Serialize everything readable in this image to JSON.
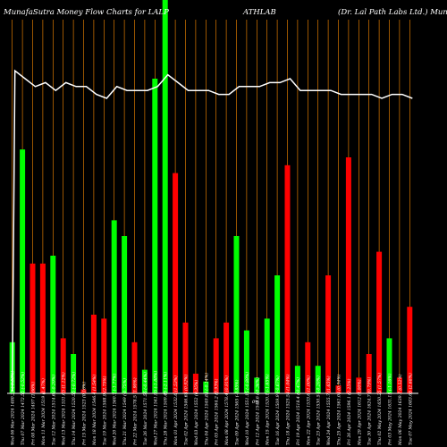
{
  "header": {
    "left": "MunafaSutra  Money Flow  Charts for LALP",
    "center": "ATHLAB",
    "right": "(Dr. Lal Path Labs Ltd.) Munaf"
  },
  "colors": {
    "background": "#000000",
    "up": "#00ff00",
    "down": "#ff0000",
    "grid": "#ff8c00",
    "line": "#ffffff",
    "text": "#ffffff"
  },
  "chart_data": {
    "type": "bar",
    "value_scale": [
      0,
      100
    ],
    "bars": [
      {
        "v": 13,
        "dir": "up",
        "label": "Wed 06 Mar 2024 1480.25 (-0.58%)"
      },
      {
        "v": 62,
        "dir": "up",
        "label": "Thu 07 Mar 2024 1472.55 (-0.52%)"
      },
      {
        "v": 33,
        "dir": "down",
        "label": "Fri 08 Mar 2024 1497 (1.66%)"
      },
      {
        "v": 33,
        "dir": "down",
        "label": "Mon 11 Mar 2024 1519 (1.47%)"
      },
      {
        "v": 35,
        "dir": "up",
        "label": "Tue 12 Mar 2024 1514.6 (-0.29%)"
      },
      {
        "v": 14,
        "dir": "down",
        "label": "Wed 13 Mar 2024 1531.65 (1.12%)"
      },
      {
        "v": 10,
        "dir": "up",
        "label": "Thu 14 Mar 2024 1520.55 (-0.72%)"
      },
      {
        "v": 1,
        "dir": "down",
        "label": "Fri 15 Mar 2024 1523 (0.16%)"
      },
      {
        "v": 20,
        "dir": "down",
        "label": "Mon 18 Mar 2024 1546.4 (1.54%)"
      },
      {
        "v": 19,
        "dir": "down",
        "label": "Tue 19 Mar 2024 1588.9 (2.75%)"
      },
      {
        "v": 44,
        "dir": "up",
        "label": "Wed 20 Mar 2024 1560.7 (-1.77%)"
      },
      {
        "v": 40,
        "dir": "up",
        "label": "Thu 21 Mar 2024 1549 (-0.75%)"
      },
      {
        "v": 13,
        "dir": "down",
        "label": "Fri 22 Mar 2024 1578.5 (1.90%)"
      },
      {
        "v": 6,
        "dir": "up",
        "label": "Tue 26 Mar 2024 1571.55 (-0.44%)"
      },
      {
        "v": 80,
        "dir": "up",
        "label": "Wed 27 Mar 2024 1541.95 (-1.88%)"
      },
      {
        "v": 100,
        "dir": "up",
        "label": "Thu 28 Mar 2024 1509.45 (-2.11%)"
      },
      {
        "v": 56,
        "dir": "down",
        "label": "Mon 01 Apr 2024 1532.6 (1.53%)"
      },
      {
        "v": 18,
        "dir": "down",
        "label": "Tue 02 Apr 2024 1546.65 (0.92%)"
      },
      {
        "v": 5,
        "dir": "down",
        "label": "Wed 03 Apr 2024 1552 (0.35%)"
      },
      {
        "v": 3,
        "dir": "up",
        "label": "Thu 04 Apr 2024 1549.85 (-0.14%)"
      },
      {
        "v": 14,
        "dir": "down",
        "label": "Fri 05 Apr 2024 1564.2 (0.93%)"
      },
      {
        "v": 18,
        "dir": "down",
        "label": "Mon 08 Apr 2024 1578.4 (0.91%)"
      },
      {
        "v": 40,
        "dir": "up",
        "label": "Tue 09 Apr 2024 1565 (-0.85%)"
      },
      {
        "v": 16,
        "dir": "up",
        "label": "Wed 10 Apr 2024 1551.15 (-0.89%)"
      },
      {
        "v": 4,
        "dir": "up",
        "label": "Fri 12 Apr 2024 1545.6 (-0.36%)"
      },
      {
        "v": 19,
        "dir": "up",
        "label": "Mon 15 Apr 2024 1520.1 (-1.65%)"
      },
      {
        "v": 30,
        "dir": "up",
        "label": "Tue 16 Apr 2024 1509.9 (-0.67%)"
      },
      {
        "v": 58,
        "dir": "down",
        "label": "Thu 18 Apr 2024 1525.55 (1.04%)"
      },
      {
        "v": 7,
        "dir": "up",
        "label": "Fri 19 Apr 2024 1518.4 (-0.47%)"
      },
      {
        "v": 13,
        "dir": "down",
        "label": "Mon 22 Apr 2024 1533.6 (1.00%)"
      },
      {
        "v": 7,
        "dir": "up",
        "label": "Tue 23 Apr 2024 1530.5 (-0.20%)"
      },
      {
        "v": 30,
        "dir": "down",
        "label": "Wed 24 Apr 2024 1555.7 (1.65%)"
      },
      {
        "v": 2,
        "dir": "down",
        "label": "Thu 25 Apr 2024 1561.05 (0.34%)"
      },
      {
        "v": 60,
        "dir": "down",
        "label": "Fri 26 Apr 2024 1596.1 (2.25%)"
      },
      {
        "v": 4,
        "dir": "down",
        "label": "Mon 29 Apr 2024 1612 (1.00%)"
      },
      {
        "v": 10,
        "dir": "down",
        "label": "Tue 30 Apr 2024 1624.7 (0.79%)"
      },
      {
        "v": 36,
        "dir": "down",
        "label": "Thu 02 May 2024 1650.25 (1.57%)"
      },
      {
        "v": 14,
        "dir": "up",
        "label": "Fri 03 May 2024 1631.15 (-1.16%)"
      },
      {
        "v": 4,
        "dir": "down",
        "label": "Mon 06 May 2024 1639.7 (0.52%)"
      },
      {
        "v": 22,
        "dir": "down",
        "label": "Tue 07 May 2024 1683.65 (2.68%)"
      }
    ],
    "line": [
      82,
      80,
      78,
      79,
      77,
      79,
      78,
      78,
      76,
      75,
      78,
      77,
      77,
      77,
      78,
      81,
      79,
      77,
      77,
      77,
      76,
      76,
      78,
      78,
      78,
      79,
      79,
      80,
      77,
      77,
      77,
      77,
      76,
      76,
      76,
      76,
      75,
      76,
      76,
      75
    ],
    "extra_tick": "0%"
  }
}
